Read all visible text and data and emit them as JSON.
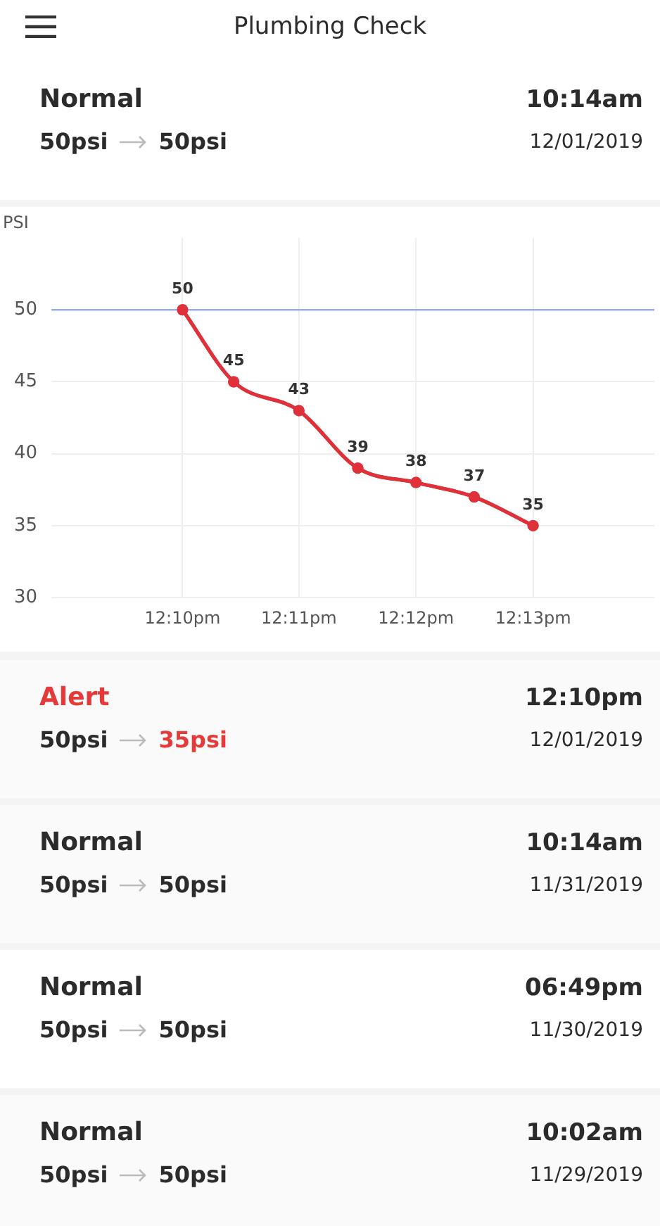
{
  "chart_data": [
    {
      "type": "other",
      "title": "Plumbing Check"
    },
    {
      "type": "other",
      "color": "#2b2b2b",
      "annotations": [
        "Normal",
        "10:14am",
        "50psi",
        "50psi",
        "12/01/2019"
      ]
    },
    {
      "type": "line",
      "ylabel": "PSI",
      "x": [
        12.1667,
        12.174,
        12.1833,
        12.1917,
        12.2,
        12.2083,
        12.2167
      ],
      "series": [
        {
          "color": "#e0303a",
          "values": [
            50,
            45,
            43,
            39,
            38,
            37,
            35
          ]
        }
      ],
      "xlim": [
        12.148,
        12.234
      ],
      "xticks": [
        {
          "value": 12.1667,
          "label": "12:10pm"
        },
        {
          "value": 12.1833,
          "label": "12:11pm"
        },
        {
          "value": 12.2,
          "label": "12:12pm"
        },
        {
          "value": 12.2167,
          "label": "12:13pm"
        }
      ],
      "ylim": [
        30,
        55
      ],
      "yticks": [
        30,
        35,
        40,
        45,
        50
      ],
      "grid": true,
      "marker": "circle",
      "line_style": "solid",
      "data_labels": true,
      "ref_lines": [
        {
          "axis": "y",
          "value": 50,
          "color": "#9aabf2"
        }
      ]
    },
    {
      "type": "other",
      "color": "#e53a3a",
      "annotations": [
        "Alert",
        "12:10pm",
        "50psi",
        "35psi",
        "12/01/2019"
      ]
    },
    {
      "type": "other",
      "color": "#2b2b2b",
      "annotations": [
        "Normal",
        "10:14am",
        "50psi",
        "50psi",
        "11/31/2019"
      ]
    },
    {
      "type": "other",
      "color": "#2b2b2b",
      "annotations": [
        "Normal",
        "06:49pm",
        "50psi",
        "50psi",
        "11/30/2019"
      ]
    },
    {
      "type": "other",
      "color": "#2b2b2b",
      "annotations": [
        "Normal",
        "10:02am",
        "50psi",
        "50psi",
        "11/29/2019"
      ]
    }
  ]
}
